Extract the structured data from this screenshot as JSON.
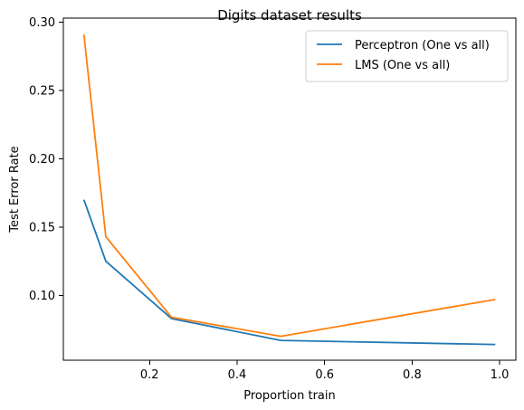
{
  "chart_data": {
    "type": "line",
    "title": "Digits dataset results",
    "xlabel": "Proportion train",
    "ylabel": "Test Error Rate",
    "xlim": [
      0.003,
      1.037
    ],
    "ylim": [
      0.0525,
      0.303
    ],
    "x_ticks": [
      0.2,
      0.4,
      0.6,
      0.8,
      1.0
    ],
    "x_tick_labels": [
      "0.2",
      "0.4",
      "0.6",
      "0.8",
      "1.0"
    ],
    "y_ticks": [
      0.1,
      0.15,
      0.2,
      0.25,
      0.3
    ],
    "y_tick_labels": [
      "0.10",
      "0.15",
      "0.20",
      "0.25",
      "0.30"
    ],
    "grid": false,
    "legend_position": "top-right",
    "series": [
      {
        "name": "Perceptron (One vs all)",
        "color": "#1f77b4",
        "x": [
          0.05,
          0.1,
          0.25,
          0.5,
          0.99
        ],
        "y": [
          0.17,
          0.125,
          0.083,
          0.067,
          0.064
        ]
      },
      {
        "name": "LMS (One vs all)",
        "color": "#ff7f0e",
        "x": [
          0.05,
          0.1,
          0.25,
          0.5,
          0.99
        ],
        "y": [
          0.291,
          0.143,
          0.084,
          0.07,
          0.097
        ]
      }
    ]
  }
}
